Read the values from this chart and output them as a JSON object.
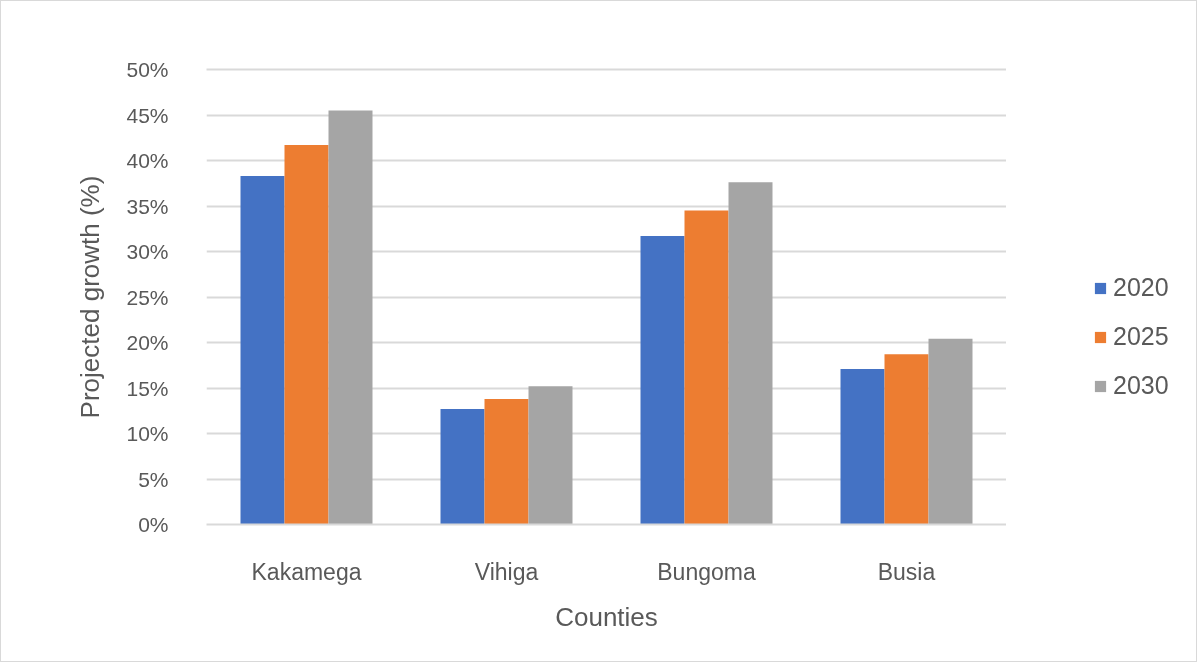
{
  "chart_data": {
    "type": "bar",
    "xlabel": "Counties",
    "ylabel": "Projected growth (%)",
    "categories": [
      "Kakamega",
      "Vihiga",
      "Bungoma",
      "Busia"
    ],
    "series": [
      {
        "name": "2020",
        "color": "#4472c4",
        "values": [
          38.3,
          12.7,
          31.7,
          17.1
        ]
      },
      {
        "name": "2025",
        "color": "#ed7d31",
        "values": [
          41.7,
          13.8,
          34.5,
          18.7
        ]
      },
      {
        "name": "2030",
        "color": "#a5a5a5",
        "values": [
          45.5,
          15.2,
          37.6,
          20.4
        ]
      }
    ],
    "ylim": [
      0,
      50
    ],
    "yticks": [
      {
        "value": 0,
        "label": "0%"
      },
      {
        "value": 5,
        "label": "5%"
      },
      {
        "value": 10,
        "label": "10%"
      },
      {
        "value": 15,
        "label": "15%"
      },
      {
        "value": 20,
        "label": "20%"
      },
      {
        "value": 25,
        "label": "25%"
      },
      {
        "value": 30,
        "label": "30%"
      },
      {
        "value": 35,
        "label": "35%"
      },
      {
        "value": 40,
        "label": "40%"
      },
      {
        "value": 45,
        "label": "45%"
      },
      {
        "value": 50,
        "label": "50%"
      }
    ],
    "grid": "y",
    "legend": "right"
  }
}
